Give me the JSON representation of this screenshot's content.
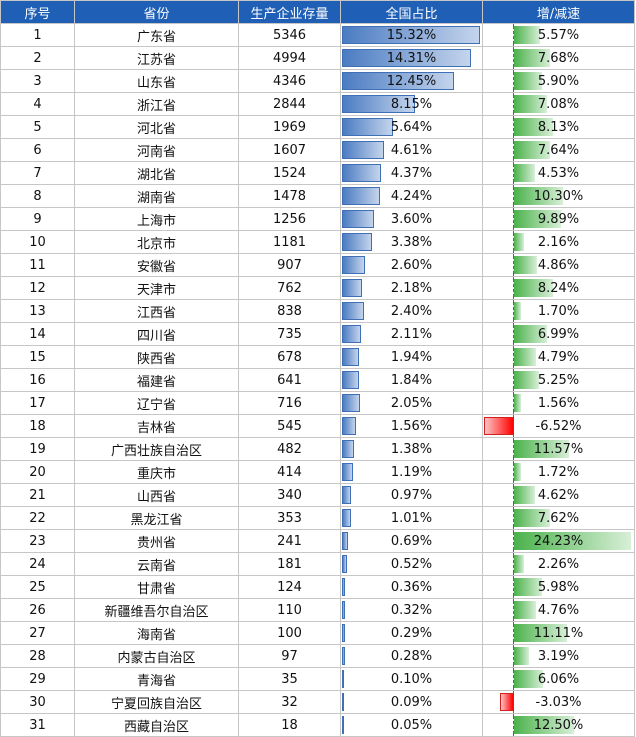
{
  "table": {
    "headers": [
      "序号",
      "省份",
      "生产企业存量",
      "全国占比",
      "增/减速"
    ],
    "rows": [
      {
        "no": "1",
        "province": "广东省",
        "count": "5346",
        "share": "15.32%",
        "share_value": 15.32,
        "growth": "5.57%",
        "growth_value": 5.57
      },
      {
        "no": "2",
        "province": "江苏省",
        "count": "4994",
        "share": "14.31%",
        "share_value": 14.31,
        "growth": "7.68%",
        "growth_value": 7.68
      },
      {
        "no": "3",
        "province": "山东省",
        "count": "4346",
        "share": "12.45%",
        "share_value": 12.45,
        "growth": "5.90%",
        "growth_value": 5.9
      },
      {
        "no": "4",
        "province": "浙江省",
        "count": "2844",
        "share": "8.15%",
        "share_value": 8.15,
        "growth": "7.08%",
        "growth_value": 7.08
      },
      {
        "no": "5",
        "province": "河北省",
        "count": "1969",
        "share": "5.64%",
        "share_value": 5.64,
        "growth": "8.13%",
        "growth_value": 8.13
      },
      {
        "no": "6",
        "province": "河南省",
        "count": "1607",
        "share": "4.61%",
        "share_value": 4.61,
        "growth": "7.64%",
        "growth_value": 7.64
      },
      {
        "no": "7",
        "province": "湖北省",
        "count": "1524",
        "share": "4.37%",
        "share_value": 4.37,
        "growth": "4.53%",
        "growth_value": 4.53
      },
      {
        "no": "8",
        "province": "湖南省",
        "count": "1478",
        "share": "4.24%",
        "share_value": 4.24,
        "growth": "10.30%",
        "growth_value": 10.3
      },
      {
        "no": "9",
        "province": "上海市",
        "count": "1256",
        "share": "3.60%",
        "share_value": 3.6,
        "growth": "9.89%",
        "growth_value": 9.89
      },
      {
        "no": "10",
        "province": "北京市",
        "count": "1181",
        "share": "3.38%",
        "share_value": 3.38,
        "growth": "2.16%",
        "growth_value": 2.16
      },
      {
        "no": "11",
        "province": "安徽省",
        "count": "907",
        "share": "2.60%",
        "share_value": 2.6,
        "growth": "4.86%",
        "growth_value": 4.86
      },
      {
        "no": "12",
        "province": "天津市",
        "count": "762",
        "share": "2.18%",
        "share_value": 2.18,
        "growth": "8.24%",
        "growth_value": 8.24
      },
      {
        "no": "13",
        "province": "江西省",
        "count": "838",
        "share": "2.40%",
        "share_value": 2.4,
        "growth": "1.70%",
        "growth_value": 1.7
      },
      {
        "no": "14",
        "province": "四川省",
        "count": "735",
        "share": "2.11%",
        "share_value": 2.11,
        "growth": "6.99%",
        "growth_value": 6.99
      },
      {
        "no": "15",
        "province": "陕西省",
        "count": "678",
        "share": "1.94%",
        "share_value": 1.94,
        "growth": "4.79%",
        "growth_value": 4.79
      },
      {
        "no": "16",
        "province": "福建省",
        "count": "641",
        "share": "1.84%",
        "share_value": 1.84,
        "growth": "5.25%",
        "growth_value": 5.25
      },
      {
        "no": "17",
        "province": "辽宁省",
        "count": "716",
        "share": "2.05%",
        "share_value": 2.05,
        "growth": "1.56%",
        "growth_value": 1.56
      },
      {
        "no": "18",
        "province": "吉林省",
        "count": "545",
        "share": "1.56%",
        "share_value": 1.56,
        "growth": "-6.52%",
        "growth_value": -6.52
      },
      {
        "no": "19",
        "province": "广西壮族自治区",
        "count": "482",
        "share": "1.38%",
        "share_value": 1.38,
        "growth": "11.57%",
        "growth_value": 11.57
      },
      {
        "no": "20",
        "province": "重庆市",
        "count": "414",
        "share": "1.19%",
        "share_value": 1.19,
        "growth": "1.72%",
        "growth_value": 1.72
      },
      {
        "no": "21",
        "province": "山西省",
        "count": "340",
        "share": "0.97%",
        "share_value": 0.97,
        "growth": "4.62%",
        "growth_value": 4.62
      },
      {
        "no": "22",
        "province": "黑龙江省",
        "count": "353",
        "share": "1.01%",
        "share_value": 1.01,
        "growth": "7.62%",
        "growth_value": 7.62
      },
      {
        "no": "23",
        "province": "贵州省",
        "count": "241",
        "share": "0.69%",
        "share_value": 0.69,
        "growth": "24.23%",
        "growth_value": 24.23
      },
      {
        "no": "24",
        "province": "云南省",
        "count": "181",
        "share": "0.52%",
        "share_value": 0.52,
        "growth": "2.26%",
        "growth_value": 2.26
      },
      {
        "no": "25",
        "province": "甘肃省",
        "count": "124",
        "share": "0.36%",
        "share_value": 0.36,
        "growth": "5.98%",
        "growth_value": 5.98
      },
      {
        "no": "26",
        "province": "新疆维吾尔自治区",
        "count": "110",
        "share": "0.32%",
        "share_value": 0.32,
        "growth": "4.76%",
        "growth_value": 4.76
      },
      {
        "no": "27",
        "province": "海南省",
        "count": "100",
        "share": "0.29%",
        "share_value": 0.29,
        "growth": "11.11%",
        "growth_value": 11.11
      },
      {
        "no": "28",
        "province": "内蒙古自治区",
        "count": "97",
        "share": "0.28%",
        "share_value": 0.28,
        "growth": "3.19%",
        "growth_value": 3.19
      },
      {
        "no": "29",
        "province": "青海省",
        "count": "35",
        "share": "0.10%",
        "share_value": 0.1,
        "growth": "6.06%",
        "growth_value": 6.06
      },
      {
        "no": "30",
        "province": "宁夏回族自治区",
        "count": "32",
        "share": "0.09%",
        "share_value": 0.09,
        "growth": "-3.03%",
        "growth_value": -3.03
      },
      {
        "no": "31",
        "province": "西藏自治区",
        "count": "18",
        "share": "0.05%",
        "share_value": 0.05,
        "growth": "12.50%",
        "growth_value": 12.5
      }
    ]
  },
  "colors": {
    "header_bg": "#1f5fb5",
    "share_bar": "#4b7cc2",
    "growth_bar": "#4bb24b",
    "negative_bar": "#ff0000"
  }
}
